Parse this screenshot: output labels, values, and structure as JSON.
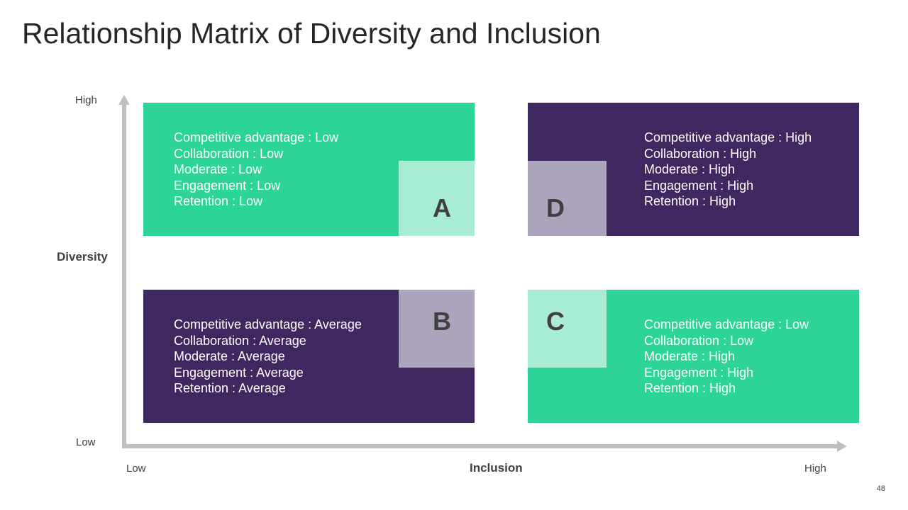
{
  "title": "Relationship Matrix of Diversity and Inclusion",
  "axes": {
    "y_title": "Diversity",
    "y_high": "High",
    "y_low": "Low",
    "x_title": "Inclusion",
    "x_low": "Low",
    "x_high": "High"
  },
  "quadrants": {
    "A": {
      "letter": "A",
      "lines": [
        "Competitive advantage : Low",
        "Collaboration : Low",
        "Moderate : Low",
        "Engagement : Low",
        "Retention : Low"
      ]
    },
    "B": {
      "letter": "B",
      "lines": [
        "Competitive advantage : Average",
        "Collaboration : Average",
        "Moderate : Average",
        "Engagement : Average",
        "Retention : Average"
      ]
    },
    "C": {
      "letter": "C",
      "lines": [
        "Competitive advantage : Low",
        "Collaboration : Low",
        "Moderate : High",
        "Engagement : High",
        "Retention : High"
      ]
    },
    "D": {
      "letter": "D",
      "lines": [
        "Competitive advantage : High",
        "Collaboration : High",
        "Moderate : High",
        "Engagement : High",
        "Retention : High"
      ]
    }
  },
  "colors": {
    "green": "#2dd497",
    "purple": "#3f2760",
    "light_green": "#a9ecd4",
    "light_purple": "#aca4bd"
  },
  "page_number": "48"
}
